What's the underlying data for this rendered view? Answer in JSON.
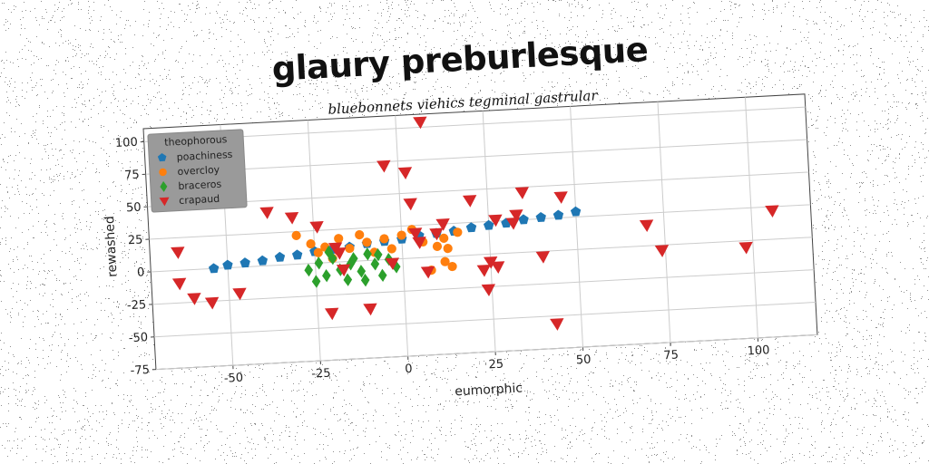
{
  "chart_data": {
    "type": "scatter",
    "title": "glaury preburlesque",
    "subtitle": "bluebonnets viehics tegminal gastrular",
    "xlabel": "eumorphic",
    "ylabel": "rewashed",
    "xlim": [
      -72,
      117
    ],
    "ylim": [
      -75,
      110
    ],
    "xticks": [
      -50,
      -25,
      0,
      25,
      50,
      75,
      100
    ],
    "yticks": [
      -75,
      -50,
      -25,
      0,
      25,
      50,
      75,
      100
    ],
    "grid": true,
    "legend": {
      "title": "theophorous",
      "placement": "top-left"
    },
    "series": [
      {
        "name": "poachiness",
        "color": "#1f77b4",
        "marker": "pentagon",
        "points": [
          [
            -54,
            0
          ],
          [
            -50,
            2
          ],
          [
            -45,
            3
          ],
          [
            -40,
            4
          ],
          [
            -35,
            6
          ],
          [
            -30,
            7
          ],
          [
            -25,
            9
          ],
          [
            -20,
            10
          ],
          [
            -15,
            11
          ],
          [
            -10,
            13
          ],
          [
            -5,
            14
          ],
          [
            0,
            15
          ],
          [
            5,
            17
          ],
          [
            10,
            18
          ],
          [
            15,
            19
          ],
          [
            20,
            21
          ],
          [
            25,
            22
          ],
          [
            30,
            23
          ],
          [
            35,
            25
          ],
          [
            40,
            26
          ],
          [
            45,
            27
          ],
          [
            50,
            29
          ]
        ]
      },
      {
        "name": "overcloy",
        "color": "#ff7f0e",
        "marker": "circle",
        "points": [
          [
            -30,
            22
          ],
          [
            -26,
            15
          ],
          [
            -22,
            12
          ],
          [
            -18,
            18
          ],
          [
            -15,
            10
          ],
          [
            -12,
            20
          ],
          [
            -10,
            14
          ],
          [
            -8,
            6
          ],
          [
            -5,
            16
          ],
          [
            -3,
            8
          ],
          [
            0,
            18
          ],
          [
            3,
            22
          ],
          [
            6,
            12
          ],
          [
            8,
            -10
          ],
          [
            10,
            8
          ],
          [
            12,
            14
          ],
          [
            12,
            -4
          ],
          [
            13,
            6
          ],
          [
            14,
            -8
          ],
          [
            16,
            18
          ],
          [
            -20,
            3
          ],
          [
            -24,
            8
          ]
        ]
      },
      {
        "name": "braceros",
        "color": "#2ca02c",
        "marker": "diamond",
        "points": [
          [
            -27,
            -5
          ],
          [
            -24,
            0
          ],
          [
            -22,
            -10
          ],
          [
            -20,
            3
          ],
          [
            -18,
            -6
          ],
          [
            -16,
            -14
          ],
          [
            -14,
            2
          ],
          [
            -12,
            -8
          ],
          [
            -10,
            5
          ],
          [
            -8,
            -3
          ],
          [
            -6,
            -12
          ],
          [
            -4,
            0
          ],
          [
            -2,
            -6
          ],
          [
            -21,
            8
          ],
          [
            -15,
            -2
          ],
          [
            -11,
            -15
          ],
          [
            -7,
            4
          ],
          [
            -25,
            -14
          ]
        ]
      },
      {
        "name": "crapaud",
        "color": "#d62728",
        "marker": "triangle-down",
        "points": [
          [
            -64,
            14
          ],
          [
            -64,
            -10
          ],
          [
            -60,
            -22
          ],
          [
            -55,
            -26
          ],
          [
            -47,
            -20
          ],
          [
            -38,
            41
          ],
          [
            -31,
            36
          ],
          [
            -24,
            28
          ],
          [
            -21,
            -39
          ],
          [
            -19,
            11
          ],
          [
            -18,
            7
          ],
          [
            -17,
            -6
          ],
          [
            -10,
            -37
          ],
          [
            -4,
            72
          ],
          [
            -3,
            -3
          ],
          [
            2,
            66
          ],
          [
            3,
            42
          ],
          [
            4,
            19
          ],
          [
            5,
            12
          ],
          [
            7,
            -11
          ],
          [
            7,
            104
          ],
          [
            10,
            18
          ],
          [
            12,
            25
          ],
          [
            20,
            42
          ],
          [
            23,
            -12
          ],
          [
            24,
            -27
          ],
          [
            25,
            -6
          ],
          [
            27,
            -10
          ],
          [
            27,
            26
          ],
          [
            32,
            23
          ],
          [
            33,
            29
          ],
          [
            35,
            46
          ],
          [
            40,
            -4
          ],
          [
            43,
            -56
          ],
          [
            46,
            41
          ],
          [
            70,
            16
          ],
          [
            74,
            -4
          ],
          [
            98,
            -5
          ],
          [
            106,
            22
          ]
        ]
      }
    ]
  }
}
